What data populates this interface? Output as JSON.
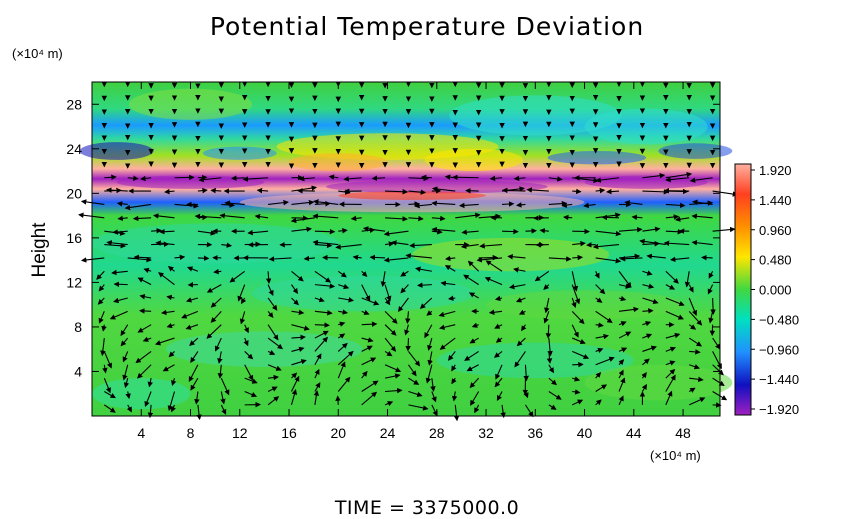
{
  "chart_data": {
    "type": "heatmap",
    "title": "Potential Temperature Deviation",
    "ylabel": "Height",
    "y_unit": "(×10⁴ m)",
    "x_unit": "(×10⁴ m)",
    "xlim": [
      0,
      51
    ],
    "ylim": [
      0,
      30
    ],
    "x_ticks": [
      4,
      8,
      12,
      16,
      20,
      24,
      28,
      32,
      36,
      40,
      44,
      48
    ],
    "y_ticks": [
      4,
      8,
      12,
      16,
      20,
      24,
      28
    ],
    "overlay": "wind vector arrows",
    "colorbar": {
      "ticks": [
        "1.920",
        "1.440",
        "0.960",
        "0.480",
        "0.000",
        "−0.480",
        "−0.960",
        "−1.440",
        "−1.920"
      ],
      "values": [
        1.92,
        1.44,
        0.96,
        0.48,
        0.0,
        -0.48,
        -0.96,
        -1.44,
        -1.92
      ],
      "colors": [
        "#ffb0a0",
        "#ff4020",
        "#ff9000",
        "#ffe600",
        "#40d840",
        "#00e0c0",
        "#2090ff",
        "#1010c0",
        "#a020c0"
      ]
    },
    "footer": "TIME = 3375000.0"
  }
}
